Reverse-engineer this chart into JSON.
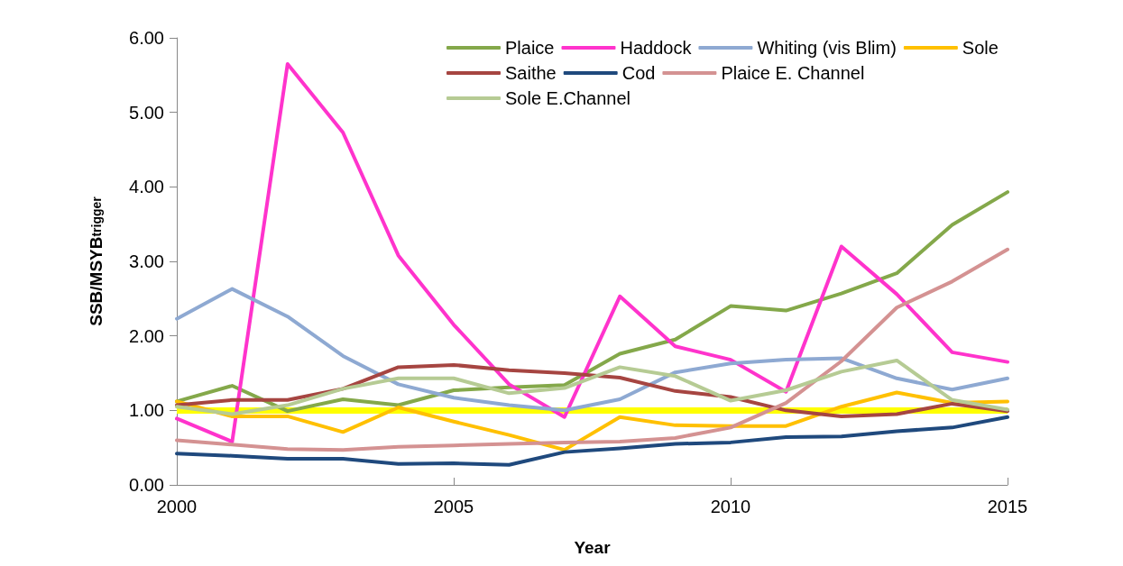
{
  "chart_data": {
    "type": "line",
    "xlabel": "Year",
    "ylabel": "SSB/MSYB$_{trigger}$",
    "x": [
      2000,
      2001,
      2002,
      2003,
      2004,
      2005,
      2006,
      2007,
      2008,
      2009,
      2010,
      2011,
      2012,
      2013,
      2014,
      2015
    ],
    "xlim": [
      2000,
      2015
    ],
    "xticks": [
      2000,
      2005,
      2010,
      2015
    ],
    "ylim": [
      0,
      6
    ],
    "yticks": [
      {
        "value": 0,
        "label": "0.00"
      },
      {
        "value": 1,
        "label": "1.00"
      },
      {
        "value": 2,
        "label": "2.00"
      },
      {
        "value": 3,
        "label": "3.00"
      },
      {
        "value": 4,
        "label": "4.00"
      },
      {
        "value": 5,
        "label": "5.00"
      },
      {
        "value": 6,
        "label": "6.00"
      }
    ],
    "grid": false,
    "legend": "top right",
    "marker": "none",
    "line_style": "solid",
    "ref_lines": [
      {
        "axis": "y",
        "value": 1,
        "label": null,
        "color": "#ffff00"
      }
    ],
    "series": [
      {
        "name": "Plaice",
        "color": "#84a84a",
        "values": [
          1.12,
          1.33,
          0.99,
          1.15,
          1.07,
          1.27,
          1.31,
          1.34,
          1.76,
          1.95,
          2.4,
          2.34,
          2.57,
          2.84,
          3.49,
          3.93
        ]
      },
      {
        "name": "Haddock",
        "color": "#ff33cc",
        "values": [
          0.89,
          0.58,
          5.65,
          4.73,
          3.08,
          2.15,
          1.35,
          0.91,
          2.53,
          1.86,
          1.68,
          1.25,
          3.2,
          2.56,
          1.78,
          1.65
        ]
      },
      {
        "name": "Whiting (vis Blim)",
        "color": "#8ea9d2",
        "values": [
          2.23,
          2.63,
          2.26,
          1.73,
          1.35,
          1.17,
          1.07,
          1.0,
          1.15,
          1.51,
          1.63,
          1.68,
          1.7,
          1.43,
          1.28,
          1.43
        ]
      },
      {
        "name": "Sole",
        "color": "#ffc000",
        "values": [
          1.12,
          0.92,
          0.92,
          0.71,
          1.04,
          0.85,
          0.67,
          0.47,
          0.91,
          0.8,
          0.79,
          0.79,
          1.05,
          1.24,
          1.1,
          1.12
        ]
      },
      {
        "name": "Saithe",
        "color": "#a64541",
        "values": [
          1.07,
          1.14,
          1.14,
          1.29,
          1.58,
          1.61,
          1.54,
          1.5,
          1.44,
          1.26,
          1.18,
          1.0,
          0.92,
          0.95,
          1.09,
          0.99
        ]
      },
      {
        "name": "Cod",
        "color": "#1f497d",
        "values": [
          0.42,
          0.39,
          0.35,
          0.35,
          0.28,
          0.29,
          0.27,
          0.44,
          0.49,
          0.55,
          0.57,
          0.64,
          0.65,
          0.72,
          0.77,
          0.91
        ]
      },
      {
        "name": "Plaice E. Channel",
        "color": "#d49292",
        "values": [
          0.6,
          0.54,
          0.48,
          0.47,
          0.51,
          0.53,
          0.55,
          0.57,
          0.58,
          0.63,
          0.77,
          1.1,
          1.66,
          2.38,
          2.73,
          3.16
        ]
      },
      {
        "name": "Sole E.Channel",
        "color": "#b6cb94",
        "values": [
          1.05,
          0.95,
          1.07,
          1.29,
          1.43,
          1.43,
          1.23,
          1.3,
          1.58,
          1.46,
          1.13,
          1.27,
          1.52,
          1.67,
          1.14,
          1.01
        ]
      }
    ]
  }
}
